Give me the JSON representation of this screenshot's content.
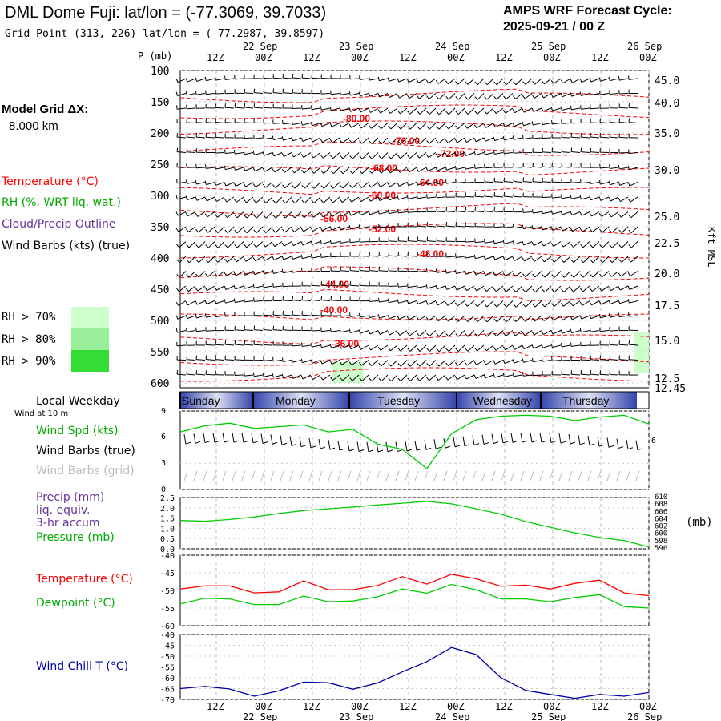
{
  "header": {
    "title": "DML Dome Fuji:  lat/lon = (-77.3069, 39.7033)",
    "grid_point": "Grid Point (313, 226) lat/lon = (-77.2987, 39.8597)",
    "forecast_label": "AMPS WRF Forecast Cycle:",
    "forecast_cycle": "2025-09-21 / 00  Z"
  },
  "sidebar": {
    "model_grid_label": "Model Grid ΔX:",
    "model_grid_value": "8.000 km",
    "legend": {
      "temperature": "Temperature (°C)",
      "rh": "RH (%, WRT liq. wat.)",
      "cloud": "Cloud/Precip Outline",
      "wind_barbs": "Wind Barbs (kts) (true)"
    },
    "rh_swatches": [
      {
        "label": "RH > 70%",
        "color": "#ccffcc"
      },
      {
        "label": "RH > 80%",
        "color": "#99ee99"
      },
      {
        "label": "RH > 90%",
        "color": "#33dd33"
      }
    ],
    "local_weekday": "Local Weekday",
    "wind_at_10m": "Wind at 10 m",
    "wind_spd": "Wind Spd (kts)",
    "wind_barbs_true": "Wind Barbs (true)",
    "wind_barbs_grid": "Wind Barbs (grid)",
    "precip_lines": [
      "Precip (mm)",
      "liq. equiv.",
      "3-hr accum"
    ],
    "pressure": "Pressure (mb)",
    "temperature": "Temperature (°C)",
    "dewpoint": "Dewpoint (°C)",
    "wind_chill": "Wind Chill T (°C)"
  },
  "colors": {
    "temperature": "#ff0000",
    "rh": "#00aa00",
    "cloud": "#663399",
    "wind": "#000000",
    "wind_grid": "#bbbbbb",
    "pressure": "#00cc00",
    "dewpoint": "#00cc00",
    "wind_chill": "#0000aa",
    "weekday_band": "#3344aa"
  },
  "time_axis": {
    "ticks": [
      "12Z",
      "00Z",
      "12Z",
      "00Z",
      "12Z",
      "00Z",
      "12Z",
      "00Z",
      "12Z",
      "00Z"
    ],
    "dates": [
      "22 Sep",
      "23 Sep",
      "24 Sep",
      "25 Sep",
      "26 Sep"
    ],
    "weekdays": [
      "Sunday",
      "Monday",
      "Tuesday",
      "Wednesday",
      "Thursday"
    ]
  },
  "chart_data": [
    {
      "type": "line",
      "name": "cross-section",
      "ylabel": "P (mb)",
      "y_ticks": [
        100,
        150,
        200,
        250,
        300,
        350,
        400,
        450,
        500,
        550,
        600
      ],
      "right_axis_label": "Kft MSL",
      "right_ticks": [
        "45.0",
        "40.0",
        "35.0",
        "30.0",
        "25.0",
        "22.5",
        "20.0",
        "17.5",
        "15.0",
        "12.5",
        "12.45"
      ],
      "temperature_labels": [
        "-80.00",
        "-76.00",
        "-72.00",
        "-68.00",
        "-64.00",
        "-60.00",
        "-56.00",
        "-52.00",
        "-48.00",
        "-44.00",
        "-40.00",
        "-36.00"
      ]
    },
    {
      "type": "line",
      "name": "wind-speed",
      "ylim": [
        0,
        9
      ],
      "y_ticks": [
        "9",
        "6",
        "3",
        "0"
      ],
      "values": [
        6.6,
        7.3,
        7.6,
        7.0,
        7.2,
        7.4,
        6.6,
        6.9,
        5.2,
        4.6,
        2.4,
        6.4,
        8.0,
        8.4,
        8.5,
        8.4,
        7.9,
        8.3,
        8.5,
        7.5
      ]
    },
    {
      "type": "line",
      "name": "precip-pressure",
      "y_ticks": [
        "2.5",
        "2.0",
        "1.5",
        "1.0",
        "0.5",
        "0.0"
      ],
      "right_ticks": [
        "610",
        "608",
        "606",
        "604",
        "602",
        "600",
        "598",
        "596"
      ],
      "right_unit": "(mb)",
      "pressure": [
        603.5,
        603.3,
        603.8,
        604.5,
        605.5,
        606.3,
        606.8,
        607.3,
        607.9,
        608.4,
        608.9,
        608.2,
        606.8,
        605.3,
        603.2,
        601.6,
        600.0,
        598.7,
        597.8,
        596.0
      ]
    },
    {
      "type": "line",
      "name": "temperature-dewpoint",
      "ylim": [
        -60,
        -40
      ],
      "y_ticks": [
        "-40",
        "-45",
        "-50",
        "-55",
        "-60"
      ],
      "series": [
        {
          "name": "Temperature",
          "values": [
            -49.6,
            -48.7,
            -48.7,
            -50.7,
            -50.4,
            -47.3,
            -49.8,
            -49.8,
            -48.6,
            -46.1,
            -48.2,
            -45.4,
            -46.7,
            -48.8,
            -48.5,
            -49.6,
            -48.0,
            -47.1,
            -50.7,
            -51.5
          ]
        },
        {
          "name": "Dewpoint",
          "values": [
            -53.8,
            -52.2,
            -52.4,
            -54.0,
            -54.0,
            -51.6,
            -53.2,
            -53.0,
            -51.8,
            -49.6,
            -50.8,
            -48.3,
            -49.8,
            -52.4,
            -52.4,
            -53.2,
            -52.0,
            -51.2,
            -54.6,
            -55.0
          ]
        }
      ]
    },
    {
      "type": "line",
      "name": "wind-chill",
      "ylim": [
        -70,
        -40
      ],
      "y_ticks": [
        "-40",
        "-45",
        "-50",
        "-55",
        "-60",
        "-65",
        "-70"
      ],
      "values": [
        -65.0,
        -64.0,
        -65.2,
        -68.5,
        -66.0,
        -62.0,
        -62.3,
        -65.3,
        -62.4,
        -57.3,
        -52.5,
        -46.0,
        -49.3,
        -60.0,
        -65.8,
        -67.7,
        -69.5,
        -67.7,
        -68.5,
        -66.8
      ]
    }
  ]
}
